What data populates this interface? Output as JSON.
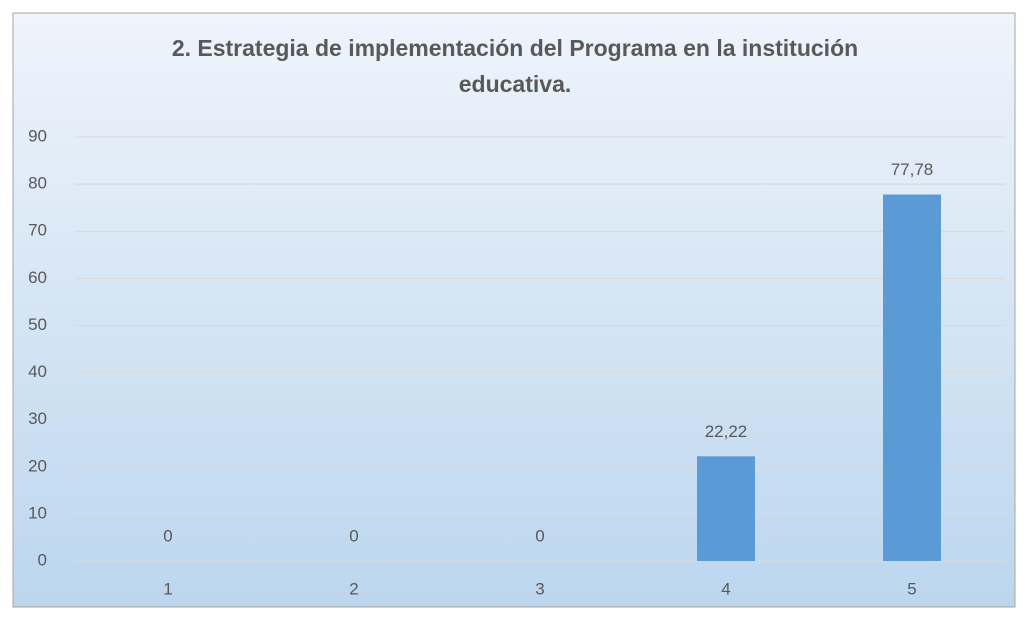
{
  "chart_data": {
    "type": "bar",
    "title": "2. Estrategia de implementación del Programa en la institución educativa.",
    "categories": [
      "1",
      "2",
      "3",
      "4",
      "5"
    ],
    "values": [
      0,
      0,
      0,
      22.22,
      77.78
    ],
    "value_labels": [
      "0",
      "0",
      "0",
      "22,22",
      "77,78"
    ],
    "color": "#5b9bd5",
    "ylim": [
      0,
      90
    ],
    "yticks": [
      0,
      10,
      20,
      30,
      40,
      50,
      60,
      70,
      80,
      90
    ],
    "grid": true
  }
}
